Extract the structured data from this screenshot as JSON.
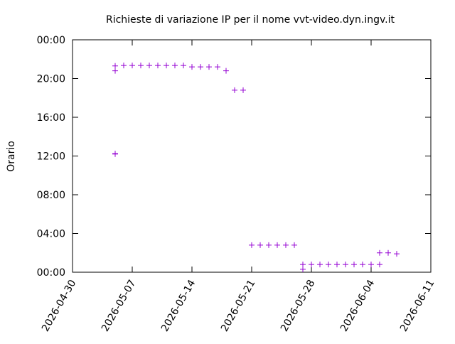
{
  "chart_data": {
    "type": "scatter",
    "title": "Richieste di variazione IP per il nome vvt-video.dyn.ingv.it",
    "y_label": "Orario",
    "color": "#9400d3",
    "x": [
      "2026-05-05",
      "2026-05-05",
      "2026-05-05",
      "2026-05-05",
      "2026-05-06",
      "2026-05-07",
      "2026-05-08",
      "2026-05-09",
      "2026-05-10",
      "2026-05-11",
      "2026-05-12",
      "2026-05-13",
      "2026-05-14",
      "2026-05-15",
      "2026-05-16",
      "2026-05-17",
      "2026-05-18",
      "2026-05-19",
      "2026-05-20",
      "2026-05-21",
      "2026-05-22",
      "2026-05-23",
      "2026-05-24",
      "2026-05-25",
      "2026-05-26",
      "2026-05-27",
      "2026-05-27",
      "2026-05-28",
      "2026-05-29",
      "2026-05-30",
      "2026-05-31",
      "2026-06-01",
      "2026-06-02",
      "2026-06-03",
      "2026-06-04",
      "2026-06-05",
      "2026-06-05",
      "2026-06-06",
      "2026-06-07"
    ],
    "values": [
      21.3,
      20.8,
      12.25,
      12.2,
      21.35,
      21.35,
      21.35,
      21.35,
      21.35,
      21.35,
      21.35,
      21.35,
      21.2,
      21.2,
      21.2,
      21.2,
      20.8,
      18.8,
      18.8,
      2.8,
      2.8,
      2.8,
      2.8,
      2.8,
      2.8,
      0.8,
      0.3,
      0.8,
      0.8,
      0.8,
      0.8,
      0.8,
      0.8,
      0.8,
      0.8,
      0.8,
      2.0,
      2.0,
      1.9
    ],
    "xlim": [
      "2026-04-30",
      "2026-06-11"
    ],
    "xticks": [
      "2026-04-30",
      "2026-05-07",
      "2026-05-14",
      "2026-05-21",
      "2026-05-28",
      "2026-06-04",
      "2026-06-11"
    ],
    "ylim": [
      0,
      24
    ],
    "yticks": [
      {
        "value": 0,
        "label": "00:00"
      },
      {
        "value": 4,
        "label": "04:00"
      },
      {
        "value": 8,
        "label": "08:00"
      },
      {
        "value": 12,
        "label": "12:00"
      },
      {
        "value": 16,
        "label": "16:00"
      },
      {
        "value": 20,
        "label": "20:00"
      },
      {
        "value": 24,
        "label": "00:00"
      }
    ]
  }
}
